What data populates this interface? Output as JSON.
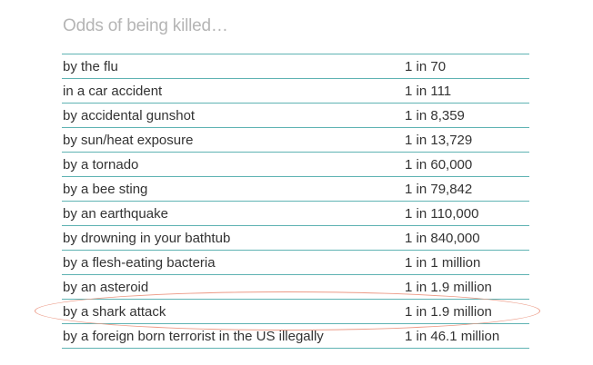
{
  "title": "Odds of being killed…",
  "rows": [
    {
      "cause": "by the flu",
      "odds": "1 in 70"
    },
    {
      "cause": "in a car accident",
      "odds": "1 in 111"
    },
    {
      "cause": "by accidental gunshot",
      "odds": "1 in 8,359"
    },
    {
      "cause": "by sun/heat exposure",
      "odds": "1 in 13,729"
    },
    {
      "cause": "by a tornado",
      "odds": "1 in 60,000"
    },
    {
      "cause": "by a bee sting",
      "odds": "1 in 79,842"
    },
    {
      "cause": "by an earthquake",
      "odds": "1 in 110,000"
    },
    {
      "cause": "by drowning in your bathtub",
      "odds": "1 in 840,000"
    },
    {
      "cause": "by a flesh-eating bacteria",
      "odds": "1 in 1 million"
    },
    {
      "cause": "by an asteroid",
      "odds": "1 in 1.9 million"
    },
    {
      "cause": "by a shark attack",
      "odds": "1 in 1.9 million"
    },
    {
      "cause": "by a foreign born terrorist in the US illegally",
      "odds": "1 in 46.1 million"
    }
  ],
  "colors": {
    "rule": "#5fb3b3",
    "highlight": "#ec9a86",
    "title": "#b5b5b5",
    "text": "#333333"
  }
}
